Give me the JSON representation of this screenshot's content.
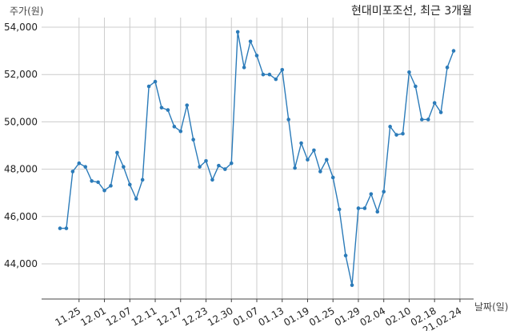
{
  "chart_data": {
    "type": "line",
    "title": "현대미포조선, 최근 3개월",
    "ylabel": "주가(원)",
    "xlabel": "날짜(일)",
    "ylim": [
      42500,
      54300
    ],
    "y_ticks": [
      44000,
      46000,
      48000,
      50000,
      52000,
      54000
    ],
    "y_tick_labels": [
      "44,000",
      "46,000",
      "48,000",
      "50,000",
      "52,000",
      "54,000"
    ],
    "x_tick_index": [
      3,
      7,
      11,
      15,
      19,
      23,
      27,
      31,
      35,
      39,
      43,
      47,
      51,
      55,
      59,
      63
    ],
    "x_tick_labels": [
      "11.25",
      "12.01",
      "12.07",
      "12.11",
      "12.17",
      "12.23",
      "12.30",
      "01.07",
      "01.13",
      "01.19",
      "01.25",
      "01.29",
      "02.04",
      "02.10",
      "02.18",
      "21.02.24"
    ],
    "grid": true,
    "legend": "none",
    "colors": {
      "line": "#2b7bb9",
      "grid": "#cccccc",
      "axis": "#444444"
    },
    "series": [
      {
        "values": [
          45500,
          45500,
          47900,
          48250,
          48100,
          47500,
          47450,
          47100,
          47300,
          48700,
          48100,
          47350,
          46750,
          47550,
          51500,
          51700,
          50600,
          50500,
          49800,
          49600,
          50700,
          49250,
          48100,
          48350,
          47550,
          48150,
          48000,
          48250,
          53800,
          52300,
          53400,
          52800,
          52000,
          52000,
          51800,
          52200,
          50100,
          48050,
          49100,
          48400,
          48800,
          47900,
          48400,
          47650,
          46300,
          44350,
          43100,
          46350,
          46350,
          46950,
          46200,
          47050,
          49800,
          49450,
          49500,
          52100,
          51500,
          50100,
          50100,
          50800,
          50400,
          52300,
          53000
        ]
      }
    ]
  }
}
